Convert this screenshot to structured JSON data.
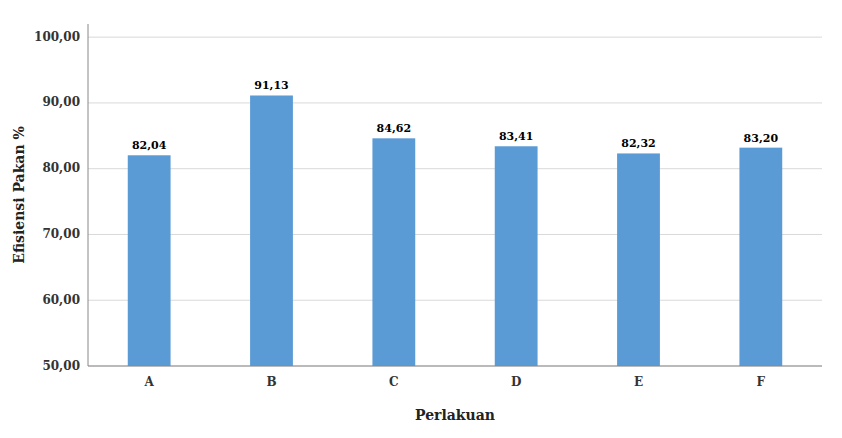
{
  "chart_data": {
    "type": "bar",
    "categories": [
      "A",
      "B",
      "C",
      "D",
      "E",
      "F"
    ],
    "values": [
      82.04,
      91.13,
      84.62,
      83.41,
      82.32,
      83.2
    ],
    "value_labels": [
      "82,04",
      "91,13",
      "84,62",
      "83,41",
      "82,32",
      "83,20"
    ],
    "data_labels": true,
    "color": "#5B9BD5",
    "xlabel": "Perlakuan",
    "ylabel": "Efisiensi Pakan %",
    "ylim": [
      50,
      102
    ],
    "yticks": [
      {
        "value": 50.0,
        "label": "50,00"
      },
      {
        "value": 60.0,
        "label": "60,00"
      },
      {
        "value": 70.0,
        "label": "70,00"
      },
      {
        "value": 80.0,
        "label": "80,00"
      },
      {
        "value": 90.0,
        "label": "90,00"
      },
      {
        "value": 100.0,
        "label": "100,00"
      }
    ],
    "grid": true
  }
}
